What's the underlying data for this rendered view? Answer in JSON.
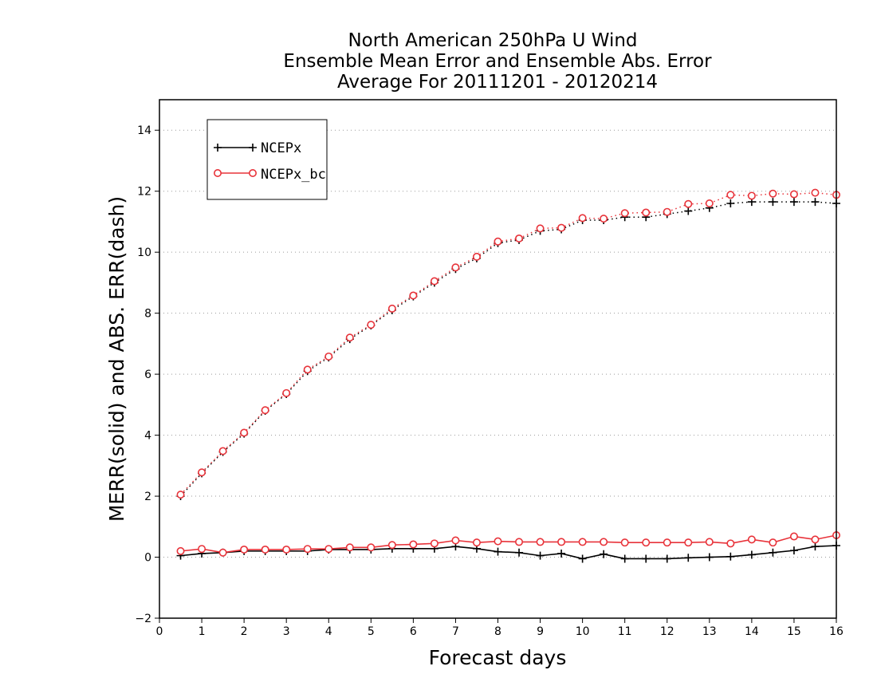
{
  "chart_data": {
    "type": "line",
    "title_lines": [
      "North American 250hPa U Wind",
      "Ensemble Mean Error and Ensemble Abs. Error",
      "Average For 20111201 - 20120214"
    ],
    "xlabel": "Forecast days",
    "ylabel": "MERR(solid) and ABS. ERR(dash)",
    "xlim": [
      0,
      16
    ],
    "ylim": [
      -2,
      15
    ],
    "x_ticks": [
      "0",
      "1",
      "2",
      "3",
      "4",
      "5",
      "6",
      "7",
      "8",
      "9",
      "10",
      "11",
      "12",
      "13",
      "14",
      "15",
      "16"
    ],
    "y_ticks": [
      "−2",
      "0",
      "2",
      "4",
      "6",
      "8",
      "10",
      "12",
      "14"
    ],
    "y_tick_values": [
      -2,
      0,
      2,
      4,
      6,
      8,
      10,
      12,
      14
    ],
    "grid": "horizontal dotted",
    "legend_position": "top-left",
    "x": [
      0.5,
      1,
      1.5,
      2,
      2.5,
      3,
      3.5,
      4,
      4.5,
      5,
      5.5,
      6,
      6.5,
      7,
      7.5,
      8,
      8.5,
      9,
      9.5,
      10,
      10.5,
      11,
      11.5,
      12,
      12.5,
      13,
      13.5,
      14,
      14.5,
      15,
      15.5,
      16
    ],
    "series": [
      {
        "name": "NCEPx",
        "color": "#000000",
        "marker": "plus",
        "merr": [
          0.05,
          0.12,
          0.15,
          0.2,
          0.2,
          0.2,
          0.2,
          0.25,
          0.25,
          0.25,
          0.28,
          0.28,
          0.28,
          0.35,
          0.28,
          0.18,
          0.15,
          0.05,
          0.12,
          -0.05,
          0.1,
          -0.05,
          -0.05,
          -0.05,
          -0.02,
          0.0,
          0.02,
          0.08,
          0.15,
          0.22,
          0.35,
          0.38
        ],
        "abs_err": [
          2.0,
          2.75,
          3.45,
          4.05,
          4.8,
          5.35,
          6.1,
          6.55,
          7.15,
          7.6,
          8.1,
          8.55,
          9.0,
          9.45,
          9.8,
          10.3,
          10.4,
          10.7,
          10.75,
          11.05,
          11.05,
          11.15,
          11.15,
          11.25,
          11.35,
          11.45,
          11.6,
          11.65,
          11.65,
          11.65,
          11.65,
          11.6
        ]
      },
      {
        "name": "NCEPx_bc",
        "color": "#e8333a",
        "marker": "circle",
        "merr": [
          0.2,
          0.27,
          0.15,
          0.25,
          0.25,
          0.25,
          0.27,
          0.27,
          0.32,
          0.32,
          0.4,
          0.42,
          0.45,
          0.55,
          0.48,
          0.52,
          0.5,
          0.5,
          0.5,
          0.5,
          0.5,
          0.48,
          0.48,
          0.48,
          0.48,
          0.5,
          0.45,
          0.58,
          0.48,
          0.68,
          0.58,
          0.72
        ],
        "abs_err": [
          2.05,
          2.78,
          3.48,
          4.08,
          4.82,
          5.38,
          6.15,
          6.58,
          7.2,
          7.62,
          8.15,
          8.58,
          9.05,
          9.5,
          9.85,
          10.35,
          10.45,
          10.78,
          10.8,
          11.12,
          11.1,
          11.28,
          11.3,
          11.32,
          11.58,
          11.6,
          11.88,
          11.85,
          11.92,
          11.9,
          11.95,
          11.88
        ]
      }
    ]
  }
}
